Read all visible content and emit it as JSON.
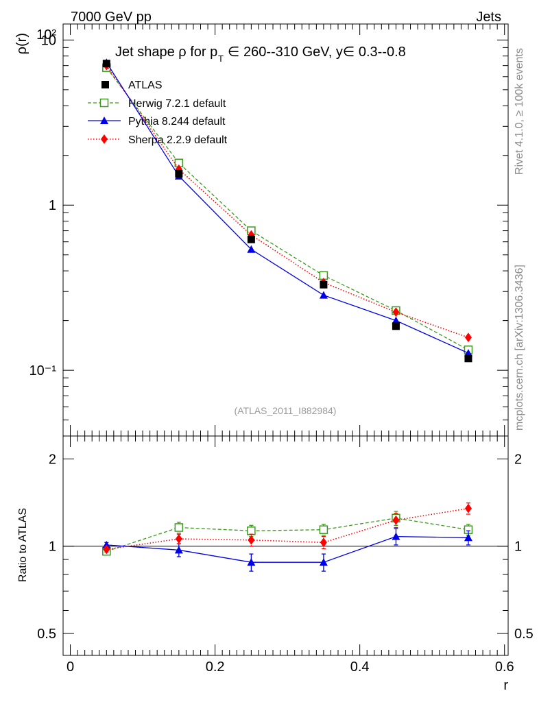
{
  "header": {
    "energy_label": "7000 GeV pp",
    "category_label": "Jets"
  },
  "side_labels": {
    "rivet": "Rivet 4.1.0, ≥ 100k events",
    "mcplots": "mcplots.cern.ch [arXiv:1306.3436]"
  },
  "chart_data": [
    {
      "type": "line",
      "panel": "main",
      "title": "Jet shape ρ for pT ∈ 260--310 GeV, y∈ 0.3--0.8",
      "ylabel": "ρ(r)",
      "yscale": "log",
      "ylim": [
        0.04,
        12.5
      ],
      "xlim": [
        -0.01,
        0.605
      ],
      "ytick_labels": [
        "10⁻¹",
        "1",
        "10",
        "10²"
      ],
      "ytick_values": [
        0.1,
        1,
        10,
        100
      ],
      "annotation": "(ATLAS_2011_I882984)",
      "x": [
        0.05,
        0.15,
        0.25,
        0.35,
        0.45,
        0.55
      ],
      "series": [
        {
          "name": "ATLAS",
          "color": "#000000",
          "marker": "square-filled",
          "line": "none",
          "values": [
            7.2,
            1.55,
            0.62,
            0.33,
            0.185,
            0.118
          ]
        },
        {
          "name": "Herwig 7.2.1 default",
          "color": "#3a9a1a",
          "marker": "square-open",
          "line": "dashed",
          "values": [
            6.8,
            1.8,
            0.7,
            0.375,
            0.23,
            0.133
          ]
        },
        {
          "name": "Pythia 8.244 default",
          "color": "#0000e6",
          "marker": "triangle",
          "line": "solid",
          "values": [
            7.3,
            1.5,
            0.54,
            0.285,
            0.2,
            0.127
          ]
        },
        {
          "name": "Sherpa 2.2.9 default",
          "color": "#ff0000",
          "marker": "diamond",
          "line": "dotted",
          "values": [
            7.0,
            1.65,
            0.66,
            0.34,
            0.225,
            0.158
          ]
        }
      ]
    },
    {
      "type": "line",
      "panel": "ratio",
      "ylabel": "Ratio to ATLAS",
      "xlabel": "r",
      "ylim": [
        0.42,
        2.4
      ],
      "xlim": [
        -0.01,
        0.605
      ],
      "xtick_labels": [
        "0",
        "0.2",
        "0.4",
        "0.6"
      ],
      "xtick_values": [
        0,
        0.2,
        0.4,
        0.6
      ],
      "ytick_labels": [
        "0.5",
        "1",
        "2"
      ],
      "ytick_values": [
        0.5,
        1,
        2
      ],
      "reference": 1,
      "x": [
        0.05,
        0.15,
        0.25,
        0.35,
        0.45,
        0.55
      ],
      "series": [
        {
          "name": "Herwig 7.2.1 default",
          "color": "#3a9a1a",
          "marker": "square-open",
          "line": "dashed",
          "values": [
            0.96,
            1.16,
            1.13,
            1.14,
            1.25,
            1.14
          ],
          "errors": [
            0.02,
            0.05,
            0.05,
            0.05,
            0.07,
            0.05
          ]
        },
        {
          "name": "Pythia 8.244 default",
          "color": "#0000e6",
          "marker": "triangle",
          "line": "solid",
          "values": [
            1.01,
            0.97,
            0.88,
            0.88,
            1.08,
            1.07
          ],
          "errors": [
            0.02,
            0.05,
            0.06,
            0.06,
            0.07,
            0.06
          ]
        },
        {
          "name": "Sherpa 2.2.9 default",
          "color": "#ff0000",
          "marker": "diamond",
          "line": "dotted",
          "values": [
            0.975,
            1.06,
            1.05,
            1.03,
            1.23,
            1.35
          ],
          "errors": [
            0.02,
            0.04,
            0.05,
            0.05,
            0.07,
            0.06
          ]
        }
      ]
    }
  ]
}
